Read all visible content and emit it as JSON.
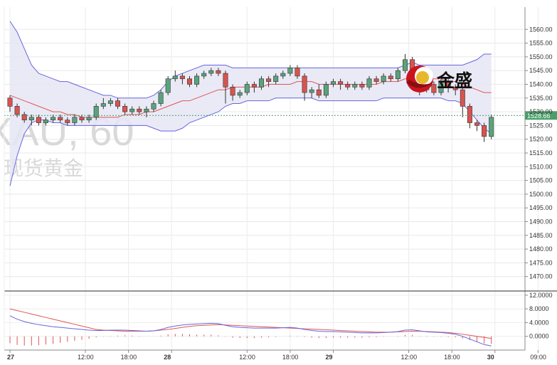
{
  "watermark": {
    "symbol": "XAU, 60",
    "name": "现货黄金"
  },
  "logo": {
    "text": "金盛",
    "icon": "jinsheng-logo-icon"
  },
  "chart_data": [
    {
      "type": "candlestick",
      "title": "",
      "ylim": [
        1465,
        1565
      ],
      "y_ticks": [
        "1560.00",
        "1555.00",
        "1550.00",
        "1545.00",
        "1540.00",
        "1535.00",
        "1530.00",
        "1525.00",
        "1520.00",
        "1515.00",
        "1510.00",
        "1505.00",
        "1500.00",
        "1495.00",
        "1490.00",
        "1485.00",
        "1480.00",
        "1475.00",
        "1470.00"
      ],
      "x_ticks": [
        "27",
        "12:00",
        "18:00",
        "28",
        "12:00",
        "18:00",
        "29",
        "12:00",
        "18:00",
        "30",
        "09:00"
      ],
      "last_price": "1528.66",
      "colors": {
        "up": "#5aa37b",
        "down": "#d9534f",
        "band_line": "#6666dd",
        "band_fill": "#e6e6f6",
        "mid_line": "#e05555",
        "last_price_line": "#4a9e6a"
      },
      "candles": [
        [
          1535,
          1532,
          1536,
          1530
        ],
        [
          1532,
          1529,
          1533,
          1528
        ],
        [
          1529,
          1527,
          1530,
          1526
        ],
        [
          1527,
          1528,
          1529,
          1525
        ],
        [
          1528,
          1526,
          1529,
          1525
        ],
        [
          1526,
          1527,
          1528,
          1525
        ],
        [
          1527,
          1528,
          1529,
          1526
        ],
        [
          1528,
          1527,
          1529,
          1526
        ],
        [
          1527,
          1526,
          1528,
          1525
        ],
        [
          1526,
          1528,
          1529,
          1525
        ],
        [
          1528,
          1527,
          1529,
          1526
        ],
        [
          1527,
          1528,
          1529,
          1526
        ],
        [
          1528,
          1532,
          1533,
          1527
        ],
        [
          1532,
          1533,
          1535,
          1531
        ],
        [
          1533,
          1534,
          1535,
          1532
        ],
        [
          1534,
          1532,
          1535,
          1531
        ],
        [
          1532,
          1530,
          1533,
          1529
        ],
        [
          1530,
          1531,
          1532,
          1529
        ],
        [
          1531,
          1530,
          1532,
          1529
        ],
        [
          1530,
          1531,
          1532,
          1528
        ],
        [
          1531,
          1533,
          1534,
          1530
        ],
        [
          1533,
          1537,
          1538,
          1532
        ],
        [
          1537,
          1542,
          1543,
          1536
        ],
        [
          1542,
          1543,
          1545,
          1541
        ],
        [
          1543,
          1542,
          1544,
          1540
        ],
        [
          1542,
          1540,
          1543,
          1539
        ],
        [
          1540,
          1543,
          1544,
          1539
        ],
        [
          1543,
          1544,
          1545,
          1542
        ],
        [
          1544,
          1545,
          1546,
          1543
        ],
        [
          1545,
          1544,
          1546,
          1543
        ],
        [
          1544,
          1539,
          1545,
          1533
        ],
        [
          1539,
          1536,
          1540,
          1534
        ],
        [
          1536,
          1537,
          1538,
          1535
        ],
        [
          1537,
          1540,
          1541,
          1536
        ],
        [
          1540,
          1539,
          1541,
          1537
        ],
        [
          1539,
          1542,
          1543,
          1538
        ],
        [
          1542,
          1541,
          1543,
          1539
        ],
        [
          1541,
          1543,
          1544,
          1540
        ],
        [
          1543,
          1544,
          1545,
          1542
        ],
        [
          1544,
          1546,
          1547,
          1543
        ],
        [
          1546,
          1543,
          1547,
          1542
        ],
        [
          1543,
          1537,
          1544,
          1534
        ],
        [
          1537,
          1538,
          1539,
          1535
        ],
        [
          1538,
          1536,
          1540,
          1535
        ],
        [
          1536,
          1540,
          1541,
          1535
        ],
        [
          1540,
          1541,
          1542,
          1539
        ],
        [
          1541,
          1540,
          1542,
          1538
        ],
        [
          1540,
          1539,
          1541,
          1538
        ],
        [
          1539,
          1540,
          1541,
          1538
        ],
        [
          1540,
          1539,
          1541,
          1538
        ],
        [
          1539,
          1542,
          1543,
          1538
        ],
        [
          1542,
          1541,
          1543,
          1540
        ],
        [
          1541,
          1543,
          1544,
          1540
        ],
        [
          1543,
          1542,
          1544,
          1541
        ],
        [
          1542,
          1545,
          1546,
          1541
        ],
        [
          1545,
          1549,
          1551,
          1544
        ],
        [
          1549,
          1542,
          1550,
          1540
        ],
        [
          1542,
          1538,
          1543,
          1536
        ],
        [
          1538,
          1540,
          1541,
          1537
        ],
        [
          1540,
          1537,
          1541,
          1536
        ],
        [
          1537,
          1541,
          1543,
          1536
        ],
        [
          1541,
          1539,
          1542,
          1537
        ],
        [
          1539,
          1538,
          1540,
          1536
        ],
        [
          1538,
          1532,
          1539,
          1528
        ],
        [
          1532,
          1526,
          1533,
          1524
        ],
        [
          1526,
          1525,
          1527,
          1523
        ],
        [
          1525,
          1521,
          1526,
          1519
        ],
        [
          1521,
          1528,
          1529,
          1520
        ]
      ],
      "mid_band": [
        1536,
        1535,
        1534,
        1533,
        1532,
        1531,
        1530,
        1530,
        1529,
        1529,
        1528,
        1528,
        1528,
        1528,
        1528,
        1528,
        1529,
        1529,
        1529,
        1530,
        1530,
        1531,
        1532,
        1533,
        1534,
        1534,
        1535,
        1536,
        1537,
        1538,
        1538,
        1539,
        1539,
        1539,
        1539,
        1539,
        1540,
        1540,
        1540,
        1540,
        1541,
        1541,
        1541,
        1540,
        1540,
        1540,
        1540,
        1540,
        1540,
        1540,
        1540,
        1540,
        1541,
        1541,
        1541,
        1542,
        1542,
        1542,
        1542,
        1542,
        1542,
        1541,
        1541,
        1540,
        1539,
        1538,
        1537,
        1537
      ],
      "upper_band": [
        1563,
        1559,
        1553,
        1547,
        1544,
        1543,
        1542,
        1541,
        1541,
        1540,
        1539,
        1538,
        1537,
        1536,
        1536,
        1535,
        1535,
        1535,
        1535,
        1535,
        1536,
        1538,
        1541,
        1543,
        1544,
        1545,
        1546,
        1547,
        1547,
        1547,
        1547,
        1546,
        1546,
        1546,
        1546,
        1546,
        1546,
        1546,
        1546,
        1546,
        1546,
        1546,
        1546,
        1546,
        1546,
        1546,
        1546,
        1546,
        1546,
        1546,
        1546,
        1546,
        1546,
        1546,
        1546,
        1547,
        1548,
        1547,
        1547,
        1547,
        1547,
        1547,
        1547,
        1547,
        1548,
        1549,
        1551,
        1551
      ],
      "lower_band": [
        1503,
        1514,
        1522,
        1526,
        1527,
        1527,
        1526,
        1526,
        1525,
        1525,
        1525,
        1525,
        1525,
        1525,
        1525,
        1525,
        1525,
        1525,
        1525,
        1525,
        1524,
        1523,
        1523,
        1523,
        1524,
        1526,
        1527,
        1528,
        1529,
        1530,
        1532,
        1533,
        1533,
        1534,
        1534,
        1534,
        1534,
        1535,
        1535,
        1535,
        1535,
        1535,
        1535,
        1534,
        1534,
        1534,
        1534,
        1534,
        1534,
        1534,
        1534,
        1534,
        1535,
        1535,
        1535,
        1535,
        1535,
        1535,
        1535,
        1535,
        1535,
        1534,
        1534,
        1533,
        1530,
        1527,
        1524,
        1522
      ]
    },
    {
      "type": "macd",
      "ylim": [
        -4,
        13
      ],
      "y_ticks": [
        "12.0000",
        "8.0000",
        "4.0000",
        "0.0000"
      ],
      "colors": {
        "signal": "#e05555",
        "macd": "#6666dd",
        "histogram": "#e05555"
      },
      "signal": [
        8,
        7.5,
        7,
        6.5,
        6,
        5.5,
        5,
        4.5,
        4,
        3.5,
        3,
        2.5,
        2,
        1.8,
        1.7,
        1.6,
        1.5,
        1.5,
        1.5,
        1.5,
        1.6,
        1.8,
        2,
        2.3,
        2.6,
        2.9,
        3.1,
        3.2,
        3.3,
        3.4,
        3.3,
        3.2,
        3.1,
        3,
        2.9,
        2.8,
        2.7,
        2.6,
        2.5,
        2.4,
        2.3,
        2.2,
        2.1,
        2,
        1.9,
        1.8,
        1.7,
        1.6,
        1.5,
        1.4,
        1.3,
        1.2,
        1.2,
        1.2,
        1.3,
        1.4,
        1.5,
        1.5,
        1.4,
        1.3,
        1.2,
        1.1,
        0.9,
        0.6,
        0.3,
        0,
        -0.3,
        -0.6
      ],
      "macd": [
        6,
        5,
        4.3,
        3.8,
        3.4,
        3.1,
        2.8,
        2.6,
        2.4,
        2.2,
        2,
        1.8,
        1.7,
        1.7,
        1.8,
        1.8,
        1.8,
        1.7,
        1.6,
        1.5,
        1.6,
        2,
        2.6,
        3,
        3.3,
        3.5,
        3.6,
        3.7,
        3.8,
        3.7,
        3.2,
        2.8,
        2.6,
        2.5,
        2.4,
        2.4,
        2.4,
        2.4,
        2.5,
        2.6,
        2.4,
        2,
        1.7,
        1.5,
        1.4,
        1.4,
        1.3,
        1.2,
        1.1,
        1,
        1,
        1,
        1.1,
        1.2,
        1.4,
        1.8,
        1.9,
        1.6,
        1.3,
        1.2,
        1.1,
        0.9,
        0.6,
        0,
        -0.8,
        -1.6,
        -2.4,
        -2.8
      ],
      "histogram": [
        -2,
        -2.5,
        -2.7,
        -2.7,
        -2.6,
        -2.4,
        -2.2,
        -1.9,
        -1.6,
        -1.3,
        -1,
        -0.7,
        -0.3,
        -0.1,
        0.1,
        0.2,
        0.3,
        0.2,
        0.1,
        0,
        0,
        0.2,
        0.6,
        0.7,
        0.7,
        0.6,
        0.5,
        0.5,
        0.5,
        0.3,
        -0.1,
        -0.4,
        -0.5,
        -0.5,
        -0.5,
        -0.4,
        -0.3,
        -0.2,
        0,
        0.2,
        0.1,
        -0.2,
        -0.4,
        -0.5,
        -0.5,
        -0.4,
        -0.4,
        -0.4,
        -0.4,
        -0.4,
        -0.3,
        -0.2,
        -0.1,
        0,
        0.1,
        0.4,
        0.4,
        0.1,
        -0.1,
        -0.1,
        -0.1,
        -0.2,
        -0.3,
        -0.6,
        -1.1,
        -1.6,
        -2.1,
        -2.2
      ]
    }
  ]
}
